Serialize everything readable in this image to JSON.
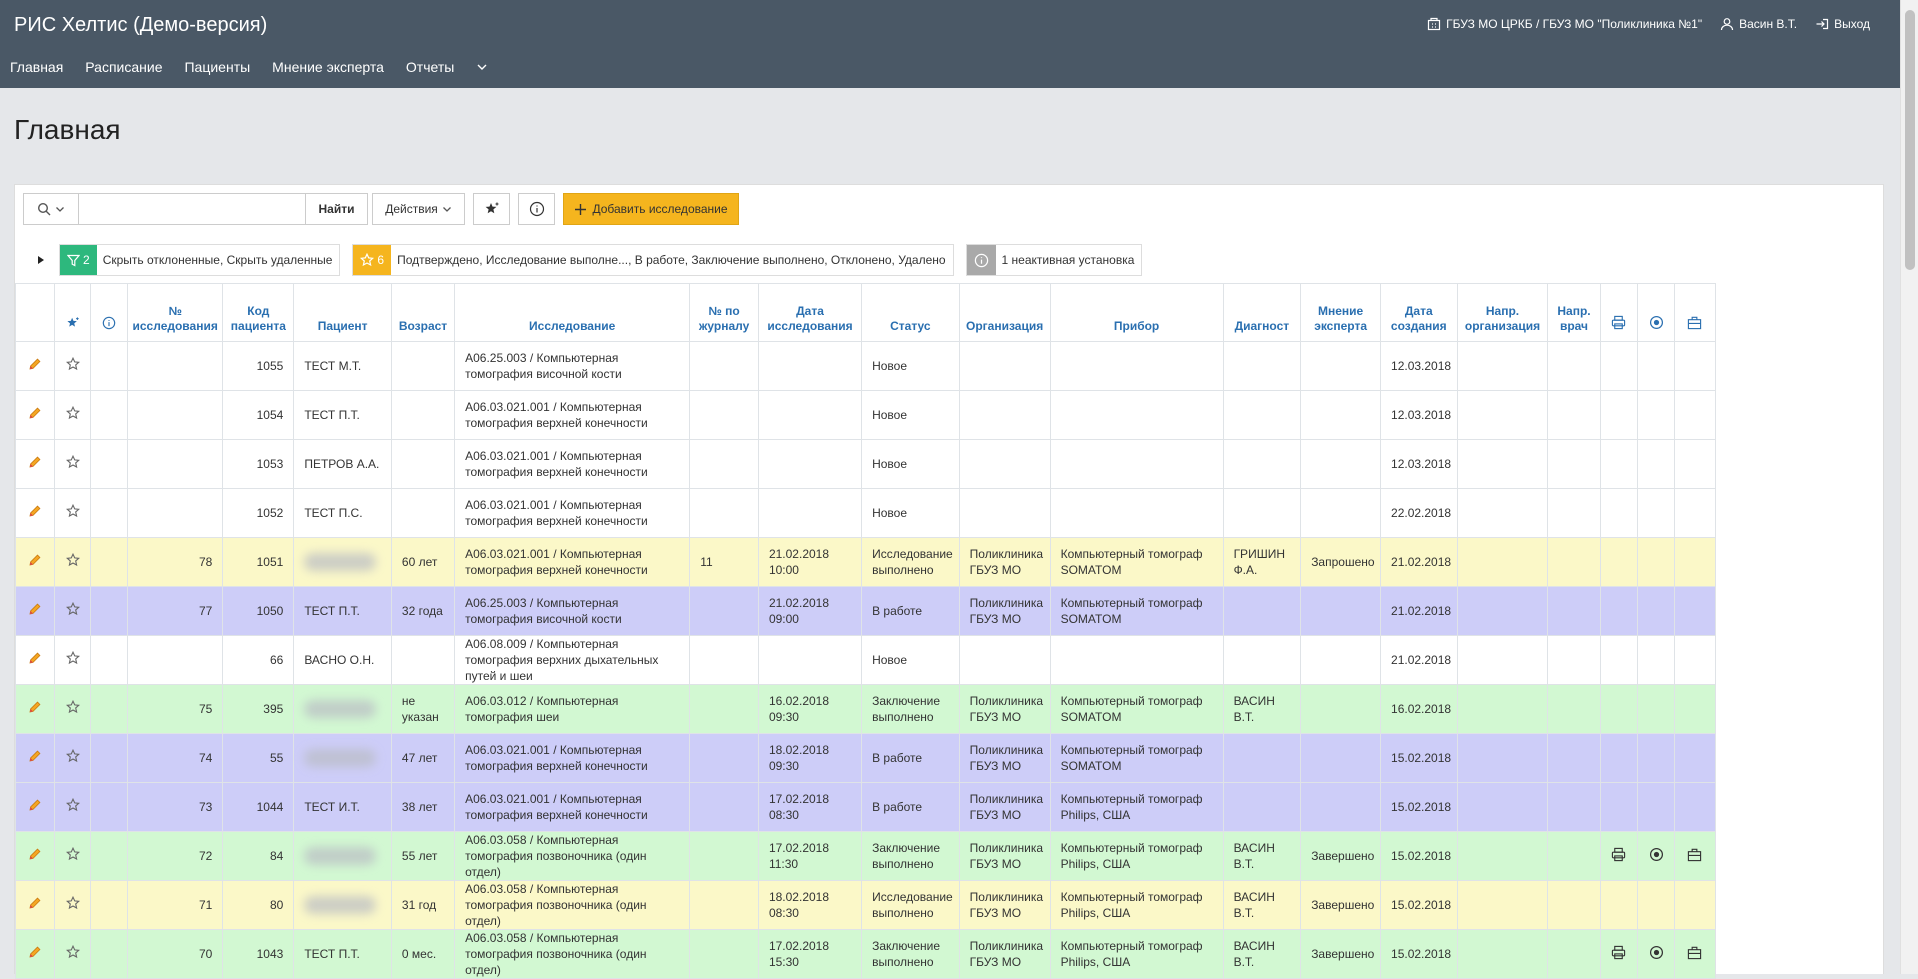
{
  "app": {
    "title": "РИС Хелтис (Демо-версия)",
    "organization": "ГБУЗ МО ЦРКБ / ГБУЗ МО \"Поликлиника №1\"",
    "user": "Васин В.Т.",
    "logout": "Выход"
  },
  "menu": {
    "items": [
      "Главная",
      "Расписание",
      "Пациенты",
      "Мнение эксперта",
      "Отчеты"
    ]
  },
  "page": {
    "title": "Главная"
  },
  "toolbar": {
    "search_value": "",
    "find_label": "Найти",
    "actions_label": "Действия",
    "add_label": "Добавить исследование"
  },
  "filters": [
    {
      "count": "2",
      "text": "Скрыть отклоненные, Скрыть удаленные",
      "color": "#2db87d"
    },
    {
      "count": "6",
      "text": "Подтверждено, Исследование выполне..., В работе, Заключение выполнено, Отклонено, Удалено",
      "color": "#f5b51e"
    },
    {
      "count": "",
      "text": "1 неактивная установка",
      "color": "#a9a9a9"
    }
  ],
  "table": {
    "headers": {
      "study_no": "№ исследования",
      "patient_code": "Код пациента",
      "patient": "Пациент",
      "age": "Возраст",
      "study": "Исследование",
      "journal_no": "№ по журналу",
      "study_date": "Дата исследования",
      "status": "Статус",
      "organization": "Организация",
      "device": "Прибор",
      "diagnostician": "Диагност",
      "expert_opinion": "Мнение эксперта",
      "created": "Дата создания",
      "ref_org": "Напр. организация",
      "ref_doctor": "Напр. врач"
    },
    "rows": [
      {
        "color": "white",
        "study_no": "",
        "code": "1055",
        "patient": "ТЕСТ М.Т.",
        "blur": false,
        "age": "",
        "study": "A06.25.003 / Компьютерная томография височной кости",
        "journal": "",
        "date": "",
        "status": "Новое",
        "org": "",
        "device": "",
        "diag": "",
        "expert": "",
        "created": "12.03.2018",
        "icons": false
      },
      {
        "color": "white",
        "study_no": "",
        "code": "1054",
        "patient": "ТЕСТ П.Т.",
        "blur": false,
        "age": "",
        "study": "A06.03.021.001 / Компьютерная томография верхней конечности",
        "journal": "",
        "date": "",
        "status": "Новое",
        "org": "",
        "device": "",
        "diag": "",
        "expert": "",
        "created": "12.03.2018",
        "icons": false
      },
      {
        "color": "white",
        "study_no": "",
        "code": "1053",
        "patient": "ПЕТРОВ А.А.",
        "blur": false,
        "age": "",
        "study": "A06.03.021.001 / Компьютерная томография верхней конечности",
        "journal": "",
        "date": "",
        "status": "Новое",
        "org": "",
        "device": "",
        "diag": "",
        "expert": "",
        "created": "12.03.2018",
        "icons": false
      },
      {
        "color": "white",
        "study_no": "",
        "code": "1052",
        "patient": "ТЕСТ П.С.",
        "blur": false,
        "age": "",
        "study": "A06.03.021.001 / Компьютерная томография верхней конечности",
        "journal": "",
        "date": "",
        "status": "Новое",
        "org": "",
        "device": "",
        "diag": "",
        "expert": "",
        "created": "22.02.2018",
        "icons": false
      },
      {
        "color": "yellow",
        "study_no": "78",
        "code": "1051",
        "patient": "",
        "blur": true,
        "age": "60 лет",
        "study": "A06.03.021.001 / Компьютерная томография верхней конечности",
        "journal": "11",
        "date": "21.02.2018 10:00",
        "status": "Исследование выполнено",
        "org": "Поликлиника ГБУЗ МО",
        "device": "Компьютерный томограф SOMATOM",
        "diag": "ГРИШИН Ф.А.",
        "expert": "Запрошено",
        "created": "21.02.2018",
        "icons": false
      },
      {
        "color": "purple",
        "study_no": "77",
        "code": "1050",
        "patient": "ТЕСТ П.Т.",
        "blur": false,
        "age": "32 года",
        "study": "A06.25.003 / Компьютерная томография височной кости",
        "journal": "",
        "date": "21.02.2018 09:00",
        "status": "В работе",
        "org": "Поликлиника ГБУЗ МО",
        "device": "Компьютерный томограф SOMATOM",
        "diag": "",
        "expert": "",
        "created": "21.02.2018",
        "icons": false
      },
      {
        "color": "white",
        "study_no": "",
        "code": "66",
        "patient": "ВАСНО О.Н.",
        "blur": false,
        "age": "",
        "study": "A06.08.009 / Компьютерная томография верхних дыхательных путей и шеи",
        "journal": "",
        "date": "",
        "status": "Новое",
        "org": "",
        "device": "",
        "diag": "",
        "expert": "",
        "created": "21.02.2018",
        "icons": false
      },
      {
        "color": "green",
        "study_no": "75",
        "code": "395",
        "patient": "",
        "blur": true,
        "age": "не указан",
        "study": "A06.03.012 / Компьютерная томография шеи",
        "journal": "",
        "date": "16.02.2018 09:30",
        "status": "Заключение выполнено",
        "org": "Поликлиника ГБУЗ МО",
        "device": "Компьютерный томограф SOMATOM",
        "diag": "ВАСИН В.Т.",
        "expert": "",
        "created": "16.02.2018",
        "icons": false
      },
      {
        "color": "purple",
        "study_no": "74",
        "code": "55",
        "patient": "",
        "blur": true,
        "age": "47 лет",
        "study": "A06.03.021.001 / Компьютерная томография верхней конечности",
        "journal": "",
        "date": "18.02.2018 09:30",
        "status": "В работе",
        "org": "Поликлиника ГБУЗ МО",
        "device": "Компьютерный томограф SOMATOM",
        "diag": "",
        "expert": "",
        "created": "15.02.2018",
        "icons": false
      },
      {
        "color": "purple",
        "study_no": "73",
        "code": "1044",
        "patient": "ТЕСТ И.Т.",
        "blur": false,
        "age": "38 лет",
        "study": "A06.03.021.001 / Компьютерная томография верхней конечности",
        "journal": "",
        "date": "17.02.2018 08:30",
        "status": "В работе",
        "org": "Поликлиника ГБУЗ МО",
        "device": "Компьютерный томограф Philips, США",
        "diag": "",
        "expert": "",
        "created": "15.02.2018",
        "icons": false
      },
      {
        "color": "green",
        "study_no": "72",
        "code": "84",
        "patient": "",
        "blur": true,
        "age": "55 лет",
        "study": "A06.03.058 / Компьютерная томография позвоночника (один отдел)",
        "journal": "",
        "date": "17.02.2018 11:30",
        "status": "Заключение выполнено",
        "org": "Поликлиника ГБУЗ МО",
        "device": "Компьютерный томограф Philips, США",
        "diag": "ВАСИН В.Т.",
        "expert": "Завершено",
        "created": "15.02.2018",
        "icons": true
      },
      {
        "color": "yellow",
        "study_no": "71",
        "code": "80",
        "patient": "",
        "blur": true,
        "age": "31 год",
        "study": "A06.03.058 / Компьютерная томография позвоночника (один отдел)",
        "journal": "",
        "date": "18.02.2018 08:30",
        "status": "Исследование выполнено",
        "org": "Поликлиника ГБУЗ МО",
        "device": "Компьютерный томограф Philips, США",
        "diag": "ВАСИН В.Т.",
        "expert": "Завершено",
        "created": "15.02.2018",
        "icons": false
      },
      {
        "color": "green",
        "study_no": "70",
        "code": "1043",
        "patient": "ТЕСТ П.Т.",
        "blur": false,
        "age": "0 мес.",
        "study": "A06.03.058 / Компьютерная томография позвоночника (один отдел)",
        "journal": "",
        "date": "17.02.2018 15:30",
        "status": "Заключение выполнено",
        "org": "Поликлиника ГБУЗ МО",
        "device": "Компьютерный томограф Philips, США",
        "diag": "ВАСИН В.Т.",
        "expert": "Завершено",
        "created": "15.02.2018",
        "icons": true
      }
    ]
  }
}
